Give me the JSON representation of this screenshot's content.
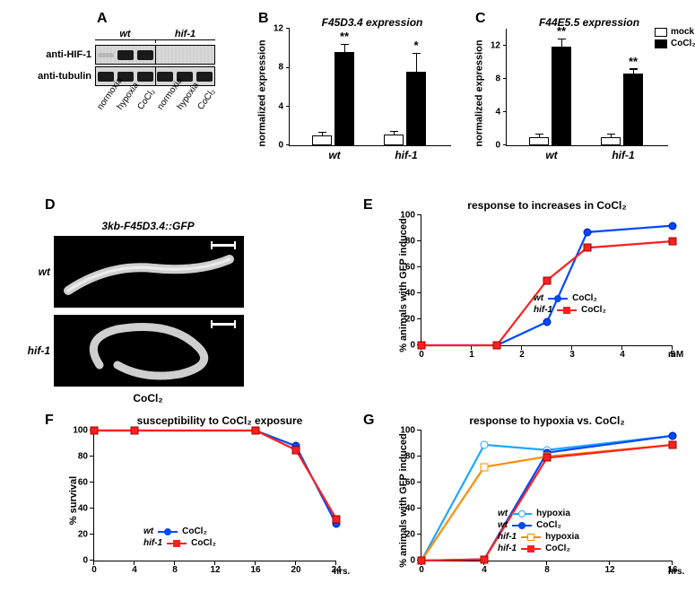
{
  "labels": {
    "A": "A",
    "B": "B",
    "C": "C",
    "D": "D",
    "E": "E",
    "F": "F",
    "G": "G"
  },
  "colors": {
    "blue": "#0048ff",
    "blue_dark": "#001c9a",
    "red": "#ff2020",
    "red_dark": "#a00000",
    "orange": "#ff8c00",
    "lightblue": "#1ea7ff"
  },
  "panelA": {
    "genotypes": [
      "wt",
      "hif-1"
    ],
    "row1_label": "anti-HIF-1",
    "row2_label": "anti-tubulin",
    "conditions": [
      "normoxia",
      "hypoxia",
      "CoCl₂"
    ],
    "band_row1_wt": [
      "faint",
      "dark",
      "dark"
    ],
    "band_row1_hif1": [
      "none",
      "none",
      "none"
    ],
    "band_row2": [
      "dark",
      "dark",
      "dark",
      "dark",
      "dark",
      "dark"
    ]
  },
  "panelB": {
    "title": "F45D3.4 expression",
    "ylab": "normalized expression",
    "ymax": 12,
    "yticks": [
      0,
      4,
      8,
      12
    ],
    "groups": [
      {
        "name": "wt",
        "mock": 1.0,
        "mock_err": 0.3,
        "cocl2": 9.6,
        "cocl2_err": 0.7,
        "sig": "**"
      },
      {
        "name": "hif-1",
        "mock": 1.1,
        "mock_err": 0.3,
        "cocl2": 7.6,
        "cocl2_err": 1.8,
        "sig": "*"
      }
    ]
  },
  "panelC": {
    "title": "F44E5.5 expression",
    "ylab": "normalized expression",
    "ymax": 14,
    "yticks": [
      0,
      4,
      8,
      12
    ],
    "groups": [
      {
        "name": "wt",
        "mock": 1.0,
        "mock_err": 0.3,
        "cocl2": 11.8,
        "cocl2_err": 0.9,
        "sig": "**"
      },
      {
        "name": "hif-1",
        "mock": 1.0,
        "mock_err": 0.3,
        "cocl2": 8.6,
        "cocl2_err": 0.5,
        "sig": "**"
      }
    ],
    "legend": {
      "mock": "mock",
      "cocl2": "CoCl₂"
    }
  },
  "panelD": {
    "title": "3kb-F45D3.4::GFP",
    "genotypes": [
      "wt",
      "hif-1"
    ],
    "bottom": "CoCl₂"
  },
  "panelE": {
    "title": "response to increases in CoCl₂",
    "ylab": "% animals with GFP induced",
    "xlab": "mM",
    "xmax": 5,
    "xticks": [
      0,
      1,
      2,
      3,
      4,
      5
    ],
    "ymax": 100,
    "yticks": [
      0,
      20,
      40,
      60,
      80,
      100
    ],
    "series": [
      {
        "name": "wt",
        "cond": "CoCl₂",
        "color": "blue",
        "shape": "circle",
        "fill": "solid",
        "points": [
          [
            0,
            0
          ],
          [
            1.5,
            0
          ],
          [
            2.5,
            18
          ],
          [
            3.3,
            87
          ],
          [
            5,
            92
          ]
        ]
      },
      {
        "name": "hif-1",
        "cond": "CoCl₂",
        "color": "red",
        "shape": "square",
        "fill": "solid",
        "points": [
          [
            0,
            0
          ],
          [
            1.5,
            0
          ],
          [
            2.5,
            50
          ],
          [
            3.3,
            75
          ],
          [
            5,
            80
          ]
        ]
      }
    ]
  },
  "panelF": {
    "title": "susceptibility to CoCl₂ exposure",
    "ylab": "% survival",
    "xlab": "hrs.",
    "xmax": 24,
    "xticks": [
      0,
      4,
      8,
      12,
      16,
      20,
      24
    ],
    "ymax": 100,
    "yticks": [
      0,
      20,
      40,
      60,
      80,
      100
    ],
    "series": [
      {
        "name": "wt",
        "cond": "CoCl₂",
        "color": "blue",
        "shape": "circle",
        "fill": "solid",
        "points": [
          [
            0,
            100
          ],
          [
            4,
            100
          ],
          [
            16,
            100
          ],
          [
            20,
            88
          ],
          [
            24,
            28
          ]
        ]
      },
      {
        "name": "hif-1",
        "cond": "CoCl₂",
        "color": "red",
        "shape": "square",
        "fill": "solid",
        "points": [
          [
            0,
            100
          ],
          [
            4,
            100
          ],
          [
            16,
            100
          ],
          [
            20,
            85
          ],
          [
            24,
            32
          ]
        ]
      }
    ]
  },
  "panelG": {
    "title": "response to hypoxia vs. CoCl₂",
    "ylab": "% animals with GFP induced",
    "xlab": "hrs.",
    "xmax": 16,
    "xticks": [
      0,
      4,
      8,
      12,
      16
    ],
    "ymax": 100,
    "yticks": [
      0,
      20,
      40,
      60,
      80,
      100
    ],
    "series": [
      {
        "name": "wt",
        "cond": "hypoxia",
        "color": "lightblue",
        "shape": "circle",
        "fill": "open",
        "points": [
          [
            0,
            0
          ],
          [
            4,
            89
          ],
          [
            8,
            85
          ],
          [
            16,
            96
          ]
        ]
      },
      {
        "name": "wt",
        "cond": "CoCl₂",
        "color": "blue",
        "shape": "circle",
        "fill": "solid",
        "points": [
          [
            0,
            0
          ],
          [
            4,
            1
          ],
          [
            8,
            83
          ],
          [
            16,
            96
          ]
        ]
      },
      {
        "name": "hif-1",
        "cond": "hypoxia",
        "color": "orange",
        "shape": "square",
        "fill": "open",
        "points": [
          [
            0,
            0
          ],
          [
            4,
            72
          ],
          [
            8,
            80
          ],
          [
            16,
            89
          ]
        ]
      },
      {
        "name": "hif-1",
        "cond": "CoCl₂",
        "color": "red",
        "shape": "square",
        "fill": "solid",
        "points": [
          [
            0,
            0
          ],
          [
            4,
            1
          ],
          [
            8,
            79
          ],
          [
            16,
            89
          ]
        ]
      }
    ]
  }
}
